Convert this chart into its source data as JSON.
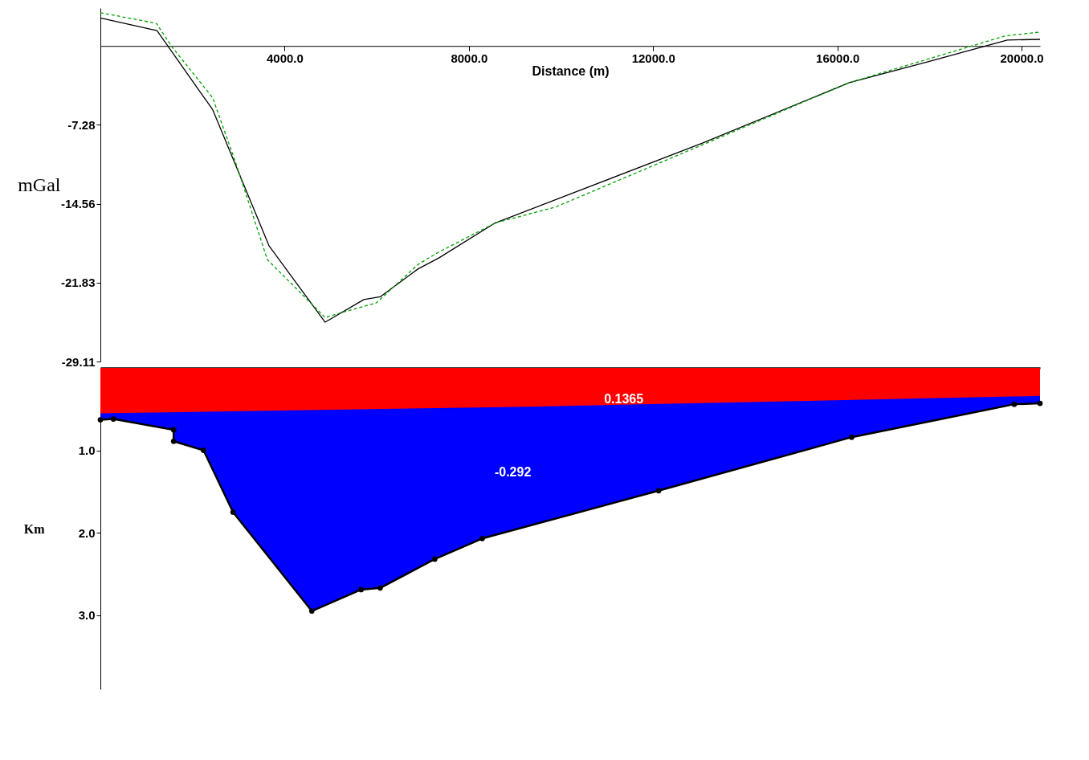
{
  "chart_data": [
    {
      "type": "line",
      "xlabel": "Distance (m)",
      "ylabel": "mGal",
      "xlim": [
        0,
        20400
      ],
      "ylim": [
        -29.11,
        3.5
      ],
      "xticks": [
        {
          "value": 4000,
          "label": "4000.0"
        },
        {
          "value": 8000,
          "label": "8000.0"
        },
        {
          "value": 12000,
          "label": "12000.0"
        },
        {
          "value": 16000,
          "label": "16000.0"
        },
        {
          "value": 20000,
          "label": "20000.0"
        }
      ],
      "yticks": [
        -7.28,
        -14.56,
        -21.83,
        -29.11
      ],
      "grid": false,
      "series": [
        {
          "color": "#000000",
          "line_style": "solid",
          "x": [
            0,
            1230,
            2440,
            3660,
            4880,
            5720,
            6075,
            6900,
            7340,
            8570,
            13070,
            16260,
            17950,
            19690,
            20400
          ],
          "values": [
            2.58,
            1.41,
            -5.89,
            -18.42,
            -25.48,
            -23.39,
            -23.14,
            -20.56,
            -19.58,
            -16.33,
            -8.96,
            -3.38,
            -1.47,
            0.55,
            0.61
          ]
        },
        {
          "color": "#00a000",
          "line_style": "dashed",
          "x": [
            0,
            1215,
            1550,
            2440,
            2950,
            3625,
            4880,
            5215,
            5990,
            6900,
            7340,
            8570,
            9880,
            16260,
            19640,
            20400
          ],
          "values": [
            3.07,
            2.09,
            -0.06,
            -4.79,
            -10.93,
            -19.71,
            -25.05,
            -24.62,
            -23.7,
            -20.14,
            -19.03,
            -16.33,
            -14.86,
            -3.38,
            0.92,
            1.29
          ]
        }
      ]
    },
    {
      "type": "area",
      "ylabel": "Km",
      "xlim": [
        0,
        20400
      ],
      "ylim": [
        3.9,
        0
      ],
      "tick_labels": "y",
      "grid": false,
      "yticks": [
        {
          "value": 1,
          "label": "1.0"
        },
        {
          "value": 2,
          "label": "2.0"
        },
        {
          "value": 3,
          "label": "3.0"
        }
      ],
      "annotations": [
        "0.1365",
        "-0.292"
      ],
      "series": [
        {
          "color": "#0000ff",
          "marker": "circle",
          "x": [
            0,
            282,
            1590,
            1590,
            2240,
            2880,
            4590,
            5660,
            6075,
            7260,
            8290,
            12120,
            16310,
            19840,
            20400
          ],
          "values": [
            0.63,
            0.62,
            0.75,
            0.89,
            1.0,
            1.75,
            2.95,
            2.69,
            2.67,
            2.32,
            2.07,
            1.49,
            0.84,
            0.44,
            0.43
          ]
        },
        {
          "color": "#ff0000",
          "x": [
            0,
            9300,
            20400
          ],
          "values": [
            0.55,
            0.47,
            0.34
          ]
        }
      ]
    }
  ]
}
